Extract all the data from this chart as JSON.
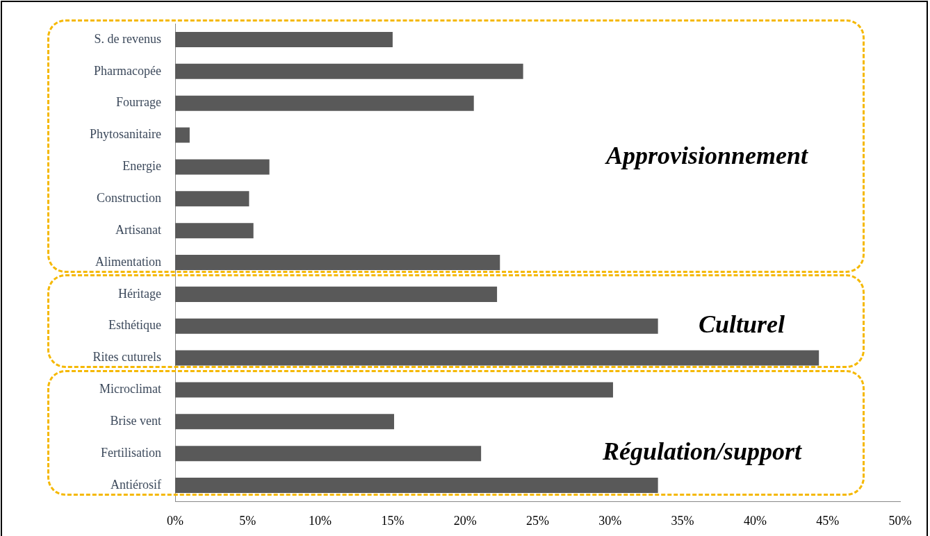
{
  "chart_data": {
    "type": "bar",
    "orientation": "horizontal",
    "categories": [
      "S. de revenus",
      "Pharmacopée",
      "Fourrage",
      "Phytosanitaire",
      "Energie",
      "Construction",
      "Artisanat",
      "Alimentation",
      "Héritage",
      "Esthétique",
      "Rites cuturels",
      "Microclimat",
      "Brise vent",
      "Fertilisation",
      "Antiérosif"
    ],
    "values": [
      15,
      24,
      20.6,
      1,
      6.5,
      5.1,
      5.4,
      22.4,
      22.2,
      33.3,
      44.4,
      30.2,
      15.1,
      21.1,
      33.3
    ],
    "color": "#595959",
    "xlim": [
      0,
      50
    ],
    "xticks": [
      {
        "value": 0,
        "label": "0%"
      },
      {
        "value": 5,
        "label": "5%"
      },
      {
        "value": 10,
        "label": "10%"
      },
      {
        "value": 15,
        "label": "15%"
      },
      {
        "value": 20,
        "label": "20%"
      },
      {
        "value": 25,
        "label": "25%"
      },
      {
        "value": 30,
        "label": "30%"
      },
      {
        "value": 35,
        "label": "35%"
      },
      {
        "value": 40,
        "label": "40%"
      },
      {
        "value": 45,
        "label": "45%"
      },
      {
        "value": 50,
        "label": "50%"
      }
    ],
    "grid": false,
    "legend": false,
    "annotations": [
      "Approvisionnement",
      "Culturel",
      "Régulation/support"
    ]
  }
}
